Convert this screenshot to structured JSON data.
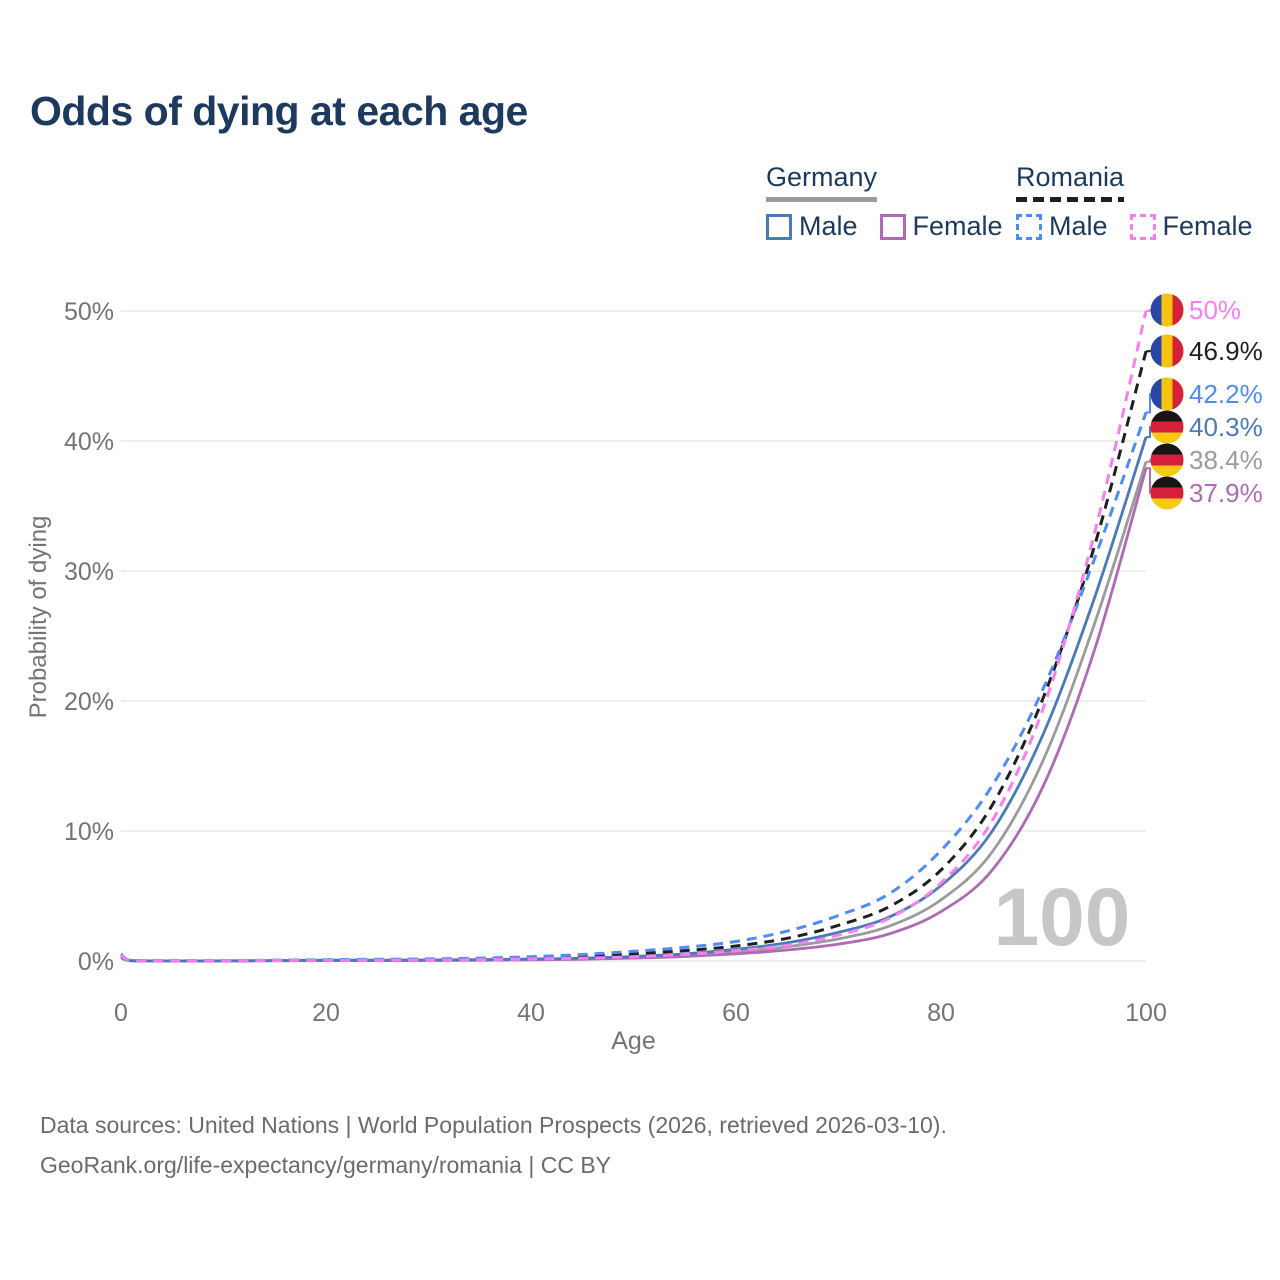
{
  "title": "Odds of dying at each age",
  "legend": {
    "germany": {
      "label": "Germany",
      "male": "Male",
      "female": "Female",
      "male_color": "#4a7ab8",
      "female_color": "#ae6bb4",
      "line_color": "#9b9b9b"
    },
    "romania": {
      "label": "Romania",
      "male": "Male",
      "female": "Female",
      "male_color": "#4f8bf7",
      "female_color": "#fa7df2",
      "line_color": "#1f1f1f"
    }
  },
  "watermark": "100",
  "flags": {
    "germany": {
      "orientation": "horizontal",
      "colors": [
        "#151515",
        "#d6203a",
        "#f7c915"
      ]
    },
    "romania": {
      "orientation": "vertical",
      "colors": [
        "#2746a6",
        "#f6c40e",
        "#d6203a"
      ]
    }
  },
  "chart_data": {
    "type": "line",
    "title": "Odds of dying at each age",
    "xlabel": "Age",
    "ylabel": "Probability of dying",
    "xlim": [
      0,
      100
    ],
    "ylim": [
      0,
      50
    ],
    "grid": true,
    "x_ticks": [
      0,
      20,
      40,
      60,
      80,
      100
    ],
    "y_ticks": [
      "0%",
      "10%",
      "20%",
      "30%",
      "40%",
      "50%"
    ],
    "ages": [
      0,
      1,
      5,
      10,
      15,
      20,
      25,
      30,
      35,
      40,
      45,
      50,
      55,
      60,
      65,
      70,
      75,
      80,
      85,
      90,
      95,
      100
    ],
    "series": [
      {
        "name": "Germany Average",
        "country": "germany",
        "gender": "average",
        "style": "solid",
        "color": "#9b9b9b",
        "values": [
          0.3,
          0.02,
          0.01,
          0.01,
          0.02,
          0.04,
          0.05,
          0.06,
          0.08,
          0.12,
          0.18,
          0.28,
          0.45,
          0.7,
          1.1,
          1.7,
          2.7,
          4.7,
          8.4,
          15.5,
          26.0,
          38.4
        ],
        "end_label": "38.4%"
      },
      {
        "name": "Germany Female",
        "country": "germany",
        "gender": "female",
        "style": "solid",
        "color": "#ae6bb4",
        "values": [
          0.28,
          0.02,
          0.01,
          0.01,
          0.02,
          0.03,
          0.03,
          0.04,
          0.06,
          0.09,
          0.14,
          0.22,
          0.35,
          0.55,
          0.85,
          1.3,
          2.1,
          3.8,
          7.0,
          13.5,
          24.0,
          37.9
        ],
        "end_label": "37.9%"
      },
      {
        "name": "Germany Male",
        "country": "germany",
        "gender": "male",
        "style": "solid",
        "color": "#4a7ab8",
        "values": [
          0.33,
          0.02,
          0.01,
          0.01,
          0.03,
          0.06,
          0.07,
          0.08,
          0.1,
          0.15,
          0.22,
          0.35,
          0.55,
          0.9,
          1.4,
          2.2,
          3.4,
          5.8,
          10.0,
          17.5,
          28.0,
          40.3
        ],
        "end_label": "40.3%"
      },
      {
        "name": "Romania Average",
        "country": "romania",
        "gender": "average",
        "style": "dashed",
        "color": "#1f1f1f",
        "values": [
          0.5,
          0.04,
          0.02,
          0.02,
          0.05,
          0.08,
          0.1,
          0.12,
          0.16,
          0.24,
          0.36,
          0.55,
          0.8,
          1.15,
          1.75,
          2.75,
          4.2,
          7.0,
          12.0,
          20.3,
          32.0,
          46.9
        ],
        "end_label": "46.9%"
      },
      {
        "name": "Romania Male",
        "country": "romania",
        "gender": "male",
        "style": "dashed",
        "color": "#4f8bf7",
        "values": [
          0.55,
          0.05,
          0.03,
          0.03,
          0.06,
          0.1,
          0.13,
          0.16,
          0.22,
          0.33,
          0.5,
          0.75,
          1.05,
          1.5,
          2.3,
          3.5,
          5.2,
          8.5,
          13.5,
          21.0,
          31.0,
          42.2
        ],
        "end_label": "42.2%"
      },
      {
        "name": "Romania Female",
        "country": "romania",
        "gender": "female",
        "style": "dashed",
        "color": "#fa7df2",
        "values": [
          0.45,
          0.04,
          0.02,
          0.02,
          0.04,
          0.05,
          0.06,
          0.08,
          0.1,
          0.15,
          0.22,
          0.33,
          0.5,
          0.8,
          1.2,
          2.0,
          3.3,
          6.0,
          10.8,
          19.5,
          33.0,
          50.0
        ],
        "end_label": "50%"
      }
    ],
    "legend_position": "top-right",
    "annotations": [
      "100"
    ]
  },
  "footer": {
    "line1": "Data sources: United Nations | World Population Prospects (2026, retrieved 2026-03-10).",
    "line2": "GeoRank.org/life-expectancy/germany/romania | CC BY"
  }
}
